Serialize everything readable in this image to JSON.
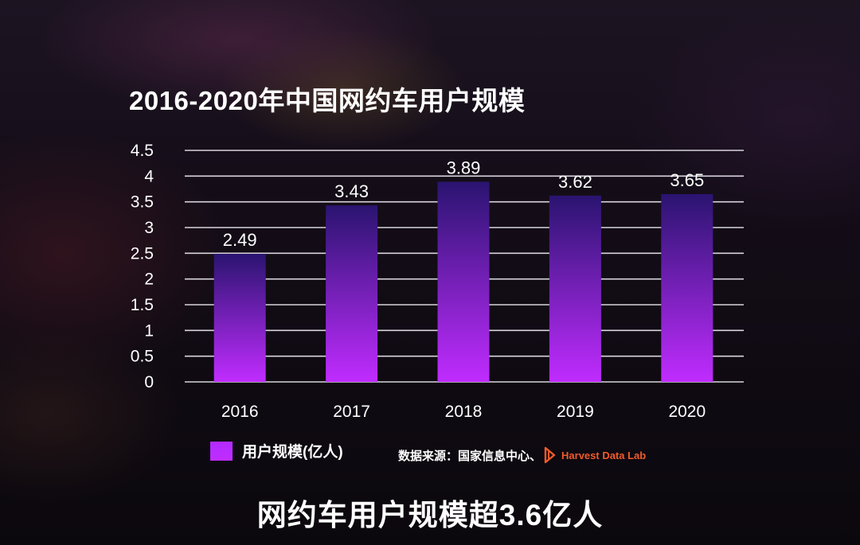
{
  "chart_data": {
    "type": "bar",
    "title": "2016-2020年中国网约车用户规模",
    "categories": [
      "2016",
      "2017",
      "2018",
      "2019",
      "2020"
    ],
    "series": [
      {
        "name": "用户规模(亿人)",
        "values": [
          2.49,
          3.43,
          3.89,
          3.62,
          3.65
        ],
        "color": "#b22bff"
      }
    ],
    "ylim": [
      0,
      4.5
    ],
    "yticks": [
      "0",
      "0.5",
      "1",
      "1.5",
      "2",
      "2.5",
      "3",
      "3.5",
      "4",
      "4.5"
    ],
    "grid": true,
    "legend": "bottom-left",
    "bar_color_top": "#2a1470",
    "bar_color_bottom": "#c02cff"
  },
  "source": {
    "label": "数据来源：国家信息中心、",
    "logo_icon": "harvest-logo-icon",
    "logo_name": "Harvest Data Lab",
    "logo_color": "#f05a2a"
  },
  "headline": "网约车用户规模超3.6亿人"
}
